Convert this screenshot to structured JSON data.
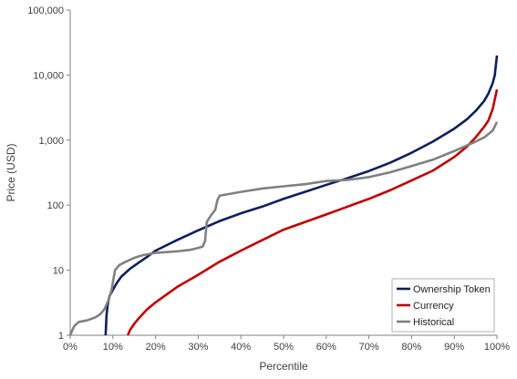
{
  "chart_data": {
    "type": "line",
    "title": "",
    "xlabel": "Percentile",
    "ylabel": "Price (USD)",
    "x_scale": "linear",
    "y_scale": "log",
    "xlim": [
      0,
      100
    ],
    "ylim": [
      1,
      100000
    ],
    "x_ticks": [
      "0%",
      "10%",
      "20%",
      "30%",
      "40%",
      "50%",
      "60%",
      "70%",
      "80%",
      "90%",
      "100%"
    ],
    "y_ticks": [
      "1",
      "10",
      "100",
      "1,000",
      "10,000",
      "100,000"
    ],
    "grid": false,
    "legend_position": "bottom-right",
    "series": [
      {
        "name": "Ownership Token",
        "color": "#0d1f5c",
        "points": [
          [
            8.3,
            1
          ],
          [
            8.5,
            2
          ],
          [
            8.8,
            3
          ],
          [
            9.2,
            4
          ],
          [
            10,
            5
          ],
          [
            11,
            6.5
          ],
          [
            12,
            8
          ],
          [
            14,
            10.5
          ],
          [
            16,
            13
          ],
          [
            18,
            16
          ],
          [
            20,
            20
          ],
          [
            25,
            29
          ],
          [
            30,
            41
          ],
          [
            35,
            57
          ],
          [
            40,
            75
          ],
          [
            45,
            95
          ],
          [
            50,
            125
          ],
          [
            55,
            160
          ],
          [
            60,
            205
          ],
          [
            65,
            260
          ],
          [
            70,
            335
          ],
          [
            75,
            450
          ],
          [
            80,
            640
          ],
          [
            85,
            950
          ],
          [
            90,
            1500
          ],
          [
            93,
            2100
          ],
          [
            95,
            2800
          ],
          [
            97,
            4000
          ],
          [
            98,
            5200
          ],
          [
            99,
            7500
          ],
          [
            99.5,
            10000
          ],
          [
            100,
            20000
          ]
        ]
      },
      {
        "name": "Currency",
        "color": "#c00000",
        "points": [
          [
            13.5,
            1
          ],
          [
            14,
            1.2
          ],
          [
            15,
            1.5
          ],
          [
            16,
            1.8
          ],
          [
            18,
            2.5
          ],
          [
            20,
            3.2
          ],
          [
            25,
            5.5
          ],
          [
            30,
            8.5
          ],
          [
            35,
            13.5
          ],
          [
            40,
            20
          ],
          [
            45,
            29
          ],
          [
            50,
            42
          ],
          [
            55,
            55
          ],
          [
            60,
            72
          ],
          [
            65,
            95
          ],
          [
            70,
            125
          ],
          [
            75,
            170
          ],
          [
            80,
            240
          ],
          [
            85,
            340
          ],
          [
            90,
            550
          ],
          [
            93,
            800
          ],
          [
            95,
            1100
          ],
          [
            97,
            1600
          ],
          [
            98,
            2000
          ],
          [
            99,
            3000
          ],
          [
            100,
            6000
          ]
        ]
      },
      {
        "name": "Historical",
        "color": "#808080",
        "points": [
          [
            0,
            1
          ],
          [
            0.5,
            1.2
          ],
          [
            1,
            1.4
          ],
          [
            2,
            1.6
          ],
          [
            4,
            1.7
          ],
          [
            6,
            1.9
          ],
          [
            7,
            2.1
          ],
          [
            8,
            2.5
          ],
          [
            9,
            3.5
          ],
          [
            9.7,
            5
          ],
          [
            10.5,
            10
          ],
          [
            11.5,
            12
          ],
          [
            13,
            13.5
          ],
          [
            15,
            15.5
          ],
          [
            17,
            17
          ],
          [
            20,
            18.5
          ],
          [
            25,
            19.5
          ],
          [
            28,
            20.5
          ],
          [
            30,
            22
          ],
          [
            31,
            23
          ],
          [
            31.6,
            28
          ],
          [
            32,
            55
          ],
          [
            33,
            70
          ],
          [
            34,
            85
          ],
          [
            34.5,
            120
          ],
          [
            35,
            140
          ],
          [
            40,
            160
          ],
          [
            45,
            180
          ],
          [
            50,
            195
          ],
          [
            55,
            210
          ],
          [
            60,
            235
          ],
          [
            65,
            245
          ],
          [
            70,
            270
          ],
          [
            75,
            320
          ],
          [
            80,
            400
          ],
          [
            85,
            500
          ],
          [
            90,
            680
          ],
          [
            93,
            830
          ],
          [
            95,
            950
          ],
          [
            97,
            1100
          ],
          [
            99,
            1400
          ],
          [
            100,
            1900
          ]
        ]
      }
    ]
  }
}
